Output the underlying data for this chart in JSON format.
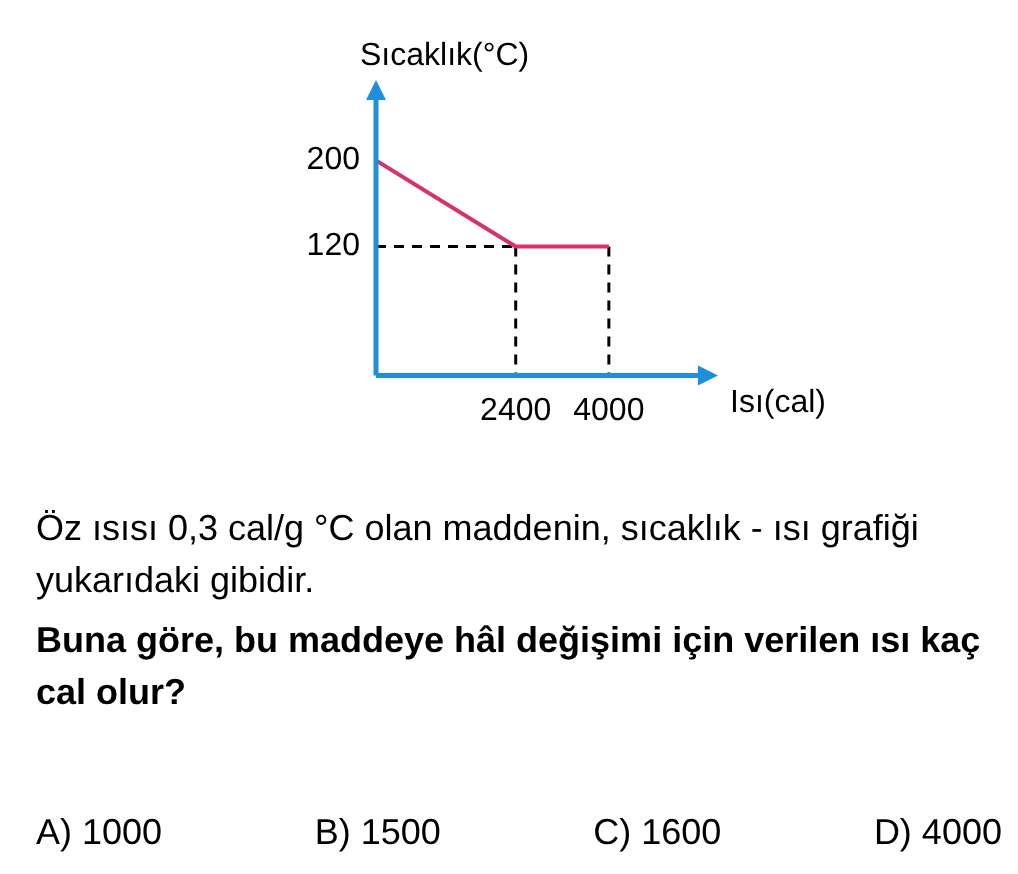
{
  "chart_data": {
    "type": "line",
    "xlabel": "Isı(cal)",
    "ylabel": "Sıcaklık(°C)",
    "x": [
      0,
      2400,
      4000
    ],
    "series": [
      {
        "color": "#d6336c",
        "values": [
          200,
          120,
          120
        ]
      },
      {
        "color": "#000000",
        "x": [
          0,
          2400
        ],
        "values": [
          120,
          120
        ],
        "line_style": "dashed"
      },
      {
        "color": "#000000",
        "x": [
          2400,
          2400
        ],
        "values": [
          120,
          0
        ],
        "line_style": "dashed"
      },
      {
        "color": "#000000",
        "x": [
          4000,
          4000
        ],
        "values": [
          120,
          0
        ],
        "line_style": "dashed"
      }
    ],
    "xlim": [
      0,
      5600
    ],
    "ylim": [
      0,
      260
    ],
    "xticks": [
      2400,
      4000
    ],
    "yticks": [
      120,
      200
    ],
    "grid": false,
    "legend": false,
    "marker": "none",
    "line_style": "solid",
    "annotations": [
      "Öz ısısı 0,3 cal/g °C olan maddenin, sıcaklık - ısı grafiği yukarıdaki gibidir.",
      "Buna göre, bu maddeye hâl değişimi için verilen ısı kaç cal olur?",
      "A) 1000",
      "B) 1500",
      "C) 1600",
      "D) 4000"
    ]
  }
}
